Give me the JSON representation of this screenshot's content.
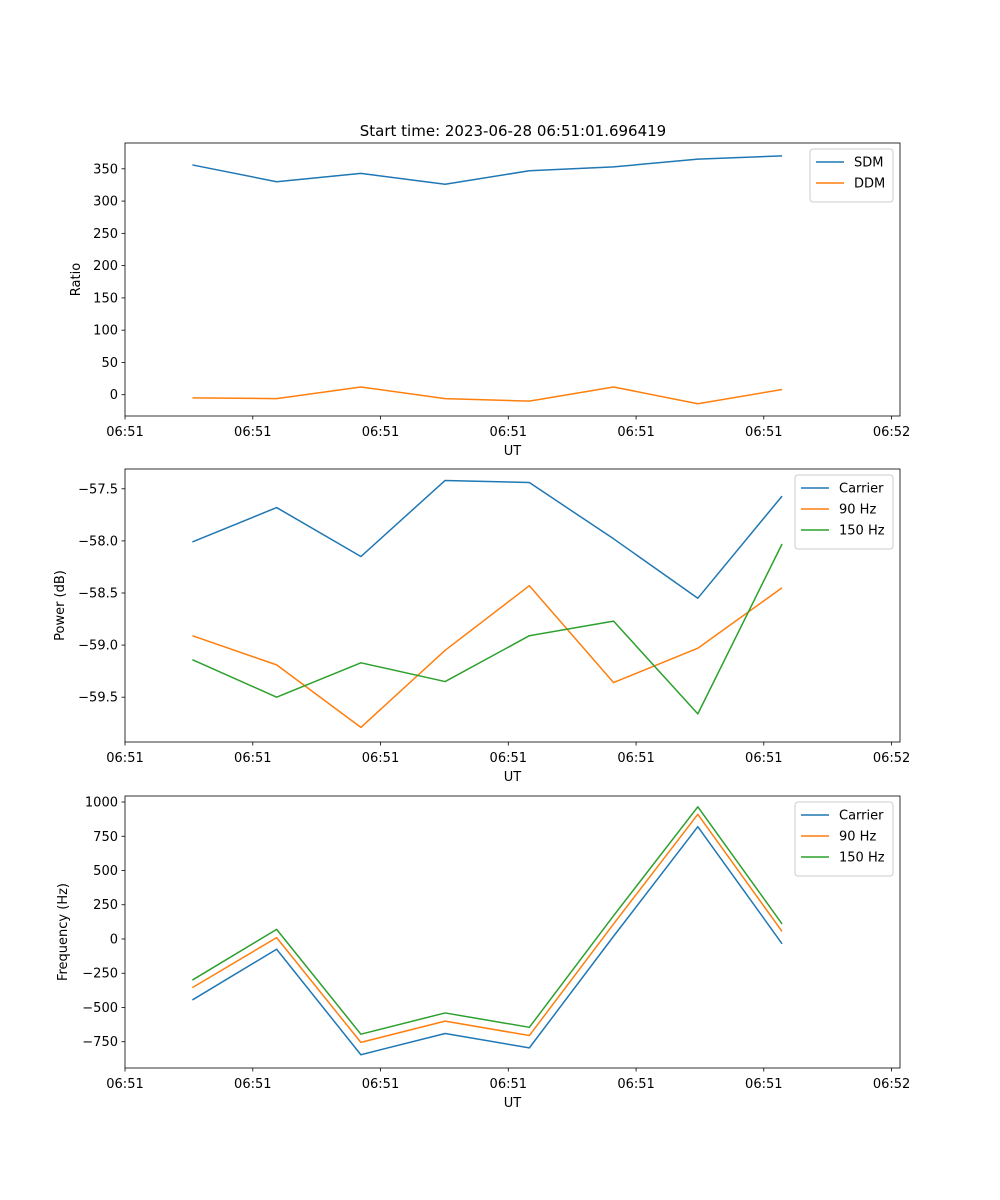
{
  "figure": {
    "title": "Start time: 2023-06-28 06:51:01.696419",
    "x_tick_labels": [
      "06:51",
      "06:51",
      "06:51",
      "06:51",
      "06:51",
      "06:51",
      "06:52"
    ]
  },
  "colors": {
    "blue": "#1f77b4",
    "orange": "#ff7f0e",
    "green": "#2ca02c"
  },
  "chart_data": [
    {
      "type": "line",
      "xlabel": "UT",
      "ylabel": "Ratio",
      "x_index": [
        1,
        2,
        3,
        4,
        5,
        6,
        7,
        8
      ],
      "xlim": [
        0.2,
        9.4
      ],
      "ylim": [
        -33,
        390
      ],
      "yticks": [
        0,
        50,
        100,
        150,
        200,
        250,
        300,
        350
      ],
      "legend": "top-right",
      "series": [
        {
          "name": "SDM",
          "color": "#1f77b4",
          "values": [
            356,
            330,
            343,
            326,
            347,
            353,
            365,
            370
          ]
        },
        {
          "name": "DDM",
          "color": "#ff7f0e",
          "values": [
            -5,
            -6,
            12,
            -6,
            -10,
            12,
            -14,
            8
          ]
        }
      ]
    },
    {
      "type": "line",
      "xlabel": "UT",
      "ylabel": "Power (dB)",
      "x_index": [
        1,
        2,
        3,
        4,
        5,
        6,
        7,
        8
      ],
      "xlim": [
        0.2,
        9.4
      ],
      "ylim": [
        -59.93,
        -57.31
      ],
      "yticks": [
        -57.5,
        -58.0,
        -58.5,
        -59.0,
        -59.5
      ],
      "legend": "top-right",
      "series": [
        {
          "name": "Carrier",
          "color": "#1f77b4",
          "values": [
            -58.01,
            -57.68,
            -58.15,
            -57.42,
            -57.44,
            -57.98,
            -58.55,
            -57.57
          ]
        },
        {
          "name": "90 Hz",
          "color": "#ff7f0e",
          "values": [
            -58.91,
            -59.19,
            -59.79,
            -59.05,
            -58.43,
            -59.36,
            -59.03,
            -58.45
          ]
        },
        {
          "name": "150 Hz",
          "color": "#2ca02c",
          "values": [
            -59.14,
            -59.5,
            -59.17,
            -59.35,
            -58.91,
            -58.77,
            -59.66,
            -58.03
          ]
        }
      ]
    },
    {
      "type": "line",
      "xlabel": "UT",
      "ylabel": "Frequency (Hz)",
      "x_index": [
        1,
        2,
        3,
        4,
        5,
        6,
        7,
        8
      ],
      "xlim": [
        0.2,
        9.4
      ],
      "ylim": [
        -942,
        1044
      ],
      "yticks": [
        1000,
        750,
        500,
        250,
        0,
        -250,
        -500,
        -750
      ],
      "legend": "top-right",
      "series": [
        {
          "name": "Carrier",
          "color": "#1f77b4",
          "values": [
            -445,
            -75,
            -845,
            -690,
            -795,
            20,
            820,
            -35
          ]
        },
        {
          "name": "90 Hz",
          "color": "#ff7f0e",
          "values": [
            -355,
            10,
            -755,
            -600,
            -705,
            110,
            910,
            55
          ]
        },
        {
          "name": "150 Hz",
          "color": "#2ca02c",
          "values": [
            -300,
            70,
            -695,
            -540,
            -645,
            170,
            965,
            110
          ]
        }
      ]
    }
  ]
}
